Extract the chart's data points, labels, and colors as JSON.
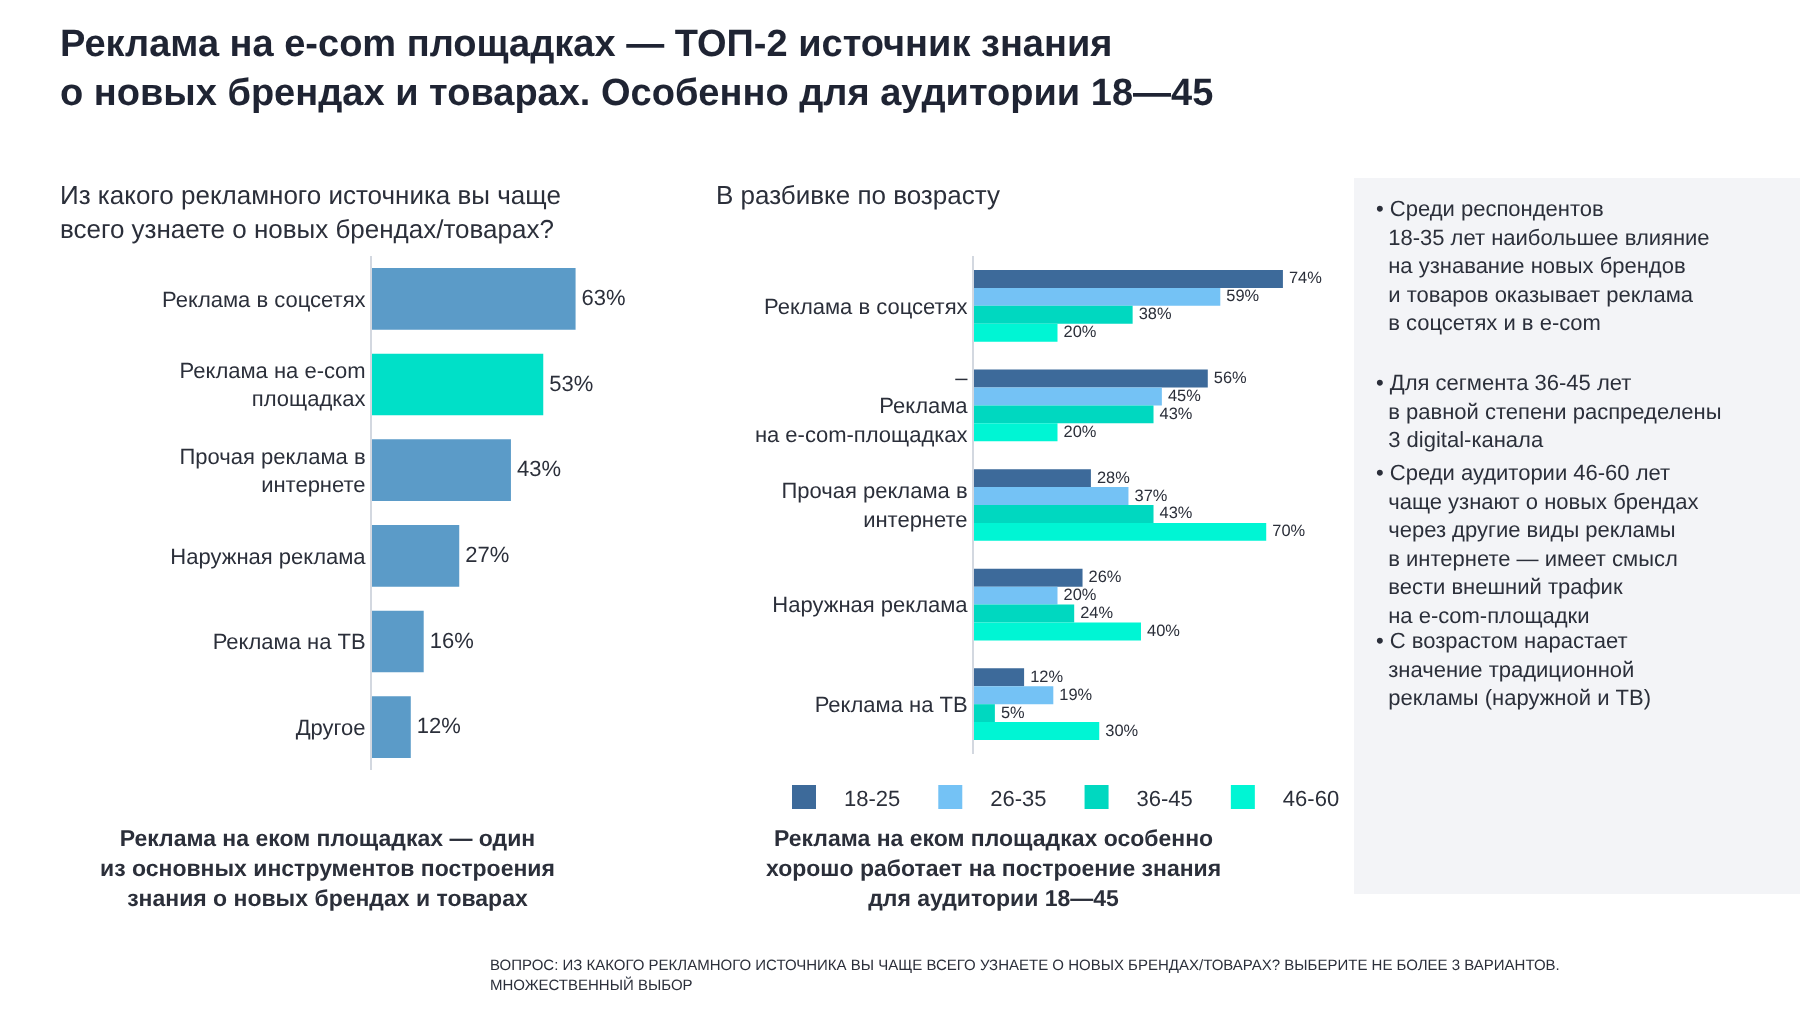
{
  "chart_data": [
    {
      "type": "bar",
      "orientation": "horizontal",
      "title": "Реклама на e-com площадках — ТОП-2 источник знания\nо новых брендах и товарах. Особенно для аудитории 18—45",
      "subtitle": "Из какого рекламного источника вы чаще\nвсего узнаете о новых брендах/товарах?",
      "categories": [
        "Реклама в соцсетях",
        "Реклама на e-com\nплощадках",
        "Прочая реклама в\nинтернете",
        "Наружная реклама",
        "Реклама на ТВ",
        "Другое"
      ],
      "values": [
        63,
        53,
        43,
        27,
        16,
        12
      ],
      "colors": [
        "#5b9bc8",
        "#00e0c8",
        "#5b9bc8",
        "#5b9bc8",
        "#5b9bc8",
        "#5b9bc8"
      ],
      "value_labels": [
        "63%",
        "53%",
        "43%",
        "27%",
        "16%",
        "12%"
      ],
      "annotations": [
        "Реклама на еком площадках — один\nиз основных инструментов построения\nзнания о новых брендах и товарах",
        "ВОПРОС: ИЗ КАКОГО РЕКЛАМНОГО ИСТОЧНИКА ВЫ ЧАЩЕ ВСЕГО УЗНАЕТЕ О НОВЫХ БРЕНДАХ/ТОВАРАХ? ВЫБЕРИТЕ НЕ БОЛЕЕ 3 ВАРИАНТОВ.\nМНОЖЕСТВЕННЫЙ ВЫБОР"
      ]
    },
    {
      "type": "bar",
      "orientation": "horizontal",
      "title": "В разбивке по возрасту",
      "legend": "bottom",
      "categories": [
        "Реклама в соцсетях",
        "–\nРеклама\nна e-com-площадках",
        "Прочая реклама в\nинтернете",
        "Наружная реклама",
        "Реклама на ТВ"
      ],
      "series": [
        {
          "name": "18-25",
          "color": "#3d6a9a",
          "values": [
            74,
            56,
            28,
            26,
            12
          ],
          "value_labels": [
            "74%",
            "56%",
            "28%",
            "26%",
            "12%"
          ]
        },
        {
          "name": "26-35",
          "color": "#74c2f5",
          "values": [
            59,
            45,
            37,
            20,
            19
          ],
          "value_labels": [
            "59%",
            "45%",
            "37%",
            "20%",
            "19%"
          ]
        },
        {
          "name": "36-45",
          "color": "#00d8c0",
          "values": [
            38,
            43,
            43,
            24,
            5
          ],
          "value_labels": [
            "38%",
            "43%",
            "43%",
            "24%",
            "5%"
          ]
        },
        {
          "name": "46-60",
          "color": "#00f5d4",
          "values": [
            20,
            20,
            70,
            40,
            30
          ],
          "value_labels": [
            "20%",
            "20%",
            "70%",
            "40%",
            "30%"
          ]
        }
      ],
      "annotations": [
        "Реклама на еком площадках особенно\nхорошо работает на построение знания\nдля аудитории 18—45"
      ]
    },
    {
      "type": "other",
      "annotations": [
        "• Среди респондентов\n  18-35 лет наибольшее влияние\n  на узнавание новых брендов\n  и товаров оказывает реклама\n  в соцсетях и в e-com",
        "• Для сегмента 36-45 лет\n  в равной степени распределены\n  3 digital-канала",
        "• Среди аудитории 46-60 лет\n  чаще узнают о новых брендах\n  через другие виды рекламы\n  в интернете — имеет смысл\n  вести внешний трафик\n  на e-com-площадки",
        "• С возрастом нарастает\n  значение традиционной\n  рекламы (наружной и ТВ)"
      ]
    }
  ]
}
